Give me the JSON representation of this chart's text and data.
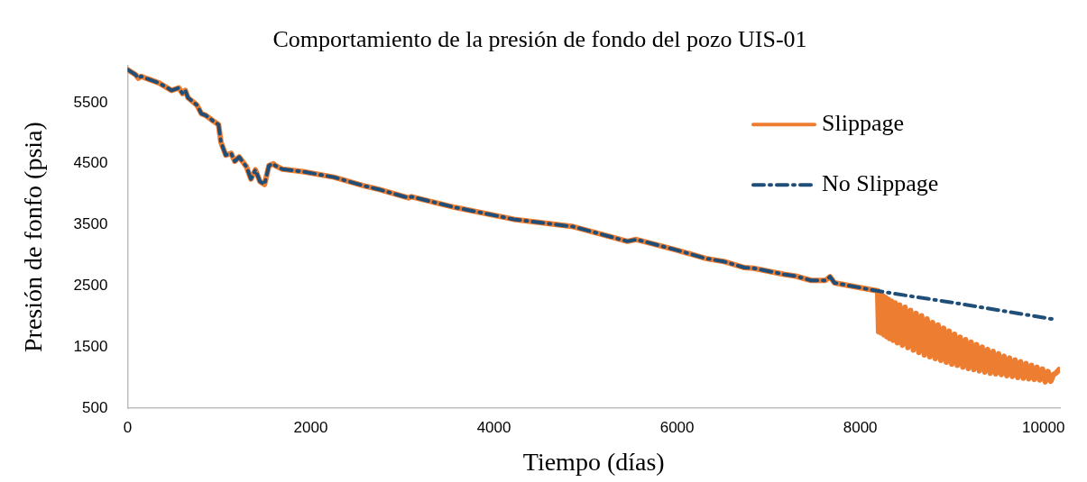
{
  "chart_data": {
    "type": "line",
    "title": "Comportamiento de la presión de fondo del pozo UIS-01",
    "xlabel": "Tiempo (días)",
    "ylabel": "Presión de fonfo (psia)",
    "xlim": [
      0,
      10180
    ],
    "xticks": [
      0,
      2000,
      4000,
      6000,
      8000,
      10000
    ],
    "ylim": [
      500,
      6100
    ],
    "yticks": [
      500,
      1500,
      2500,
      3500,
      4500,
      5500
    ],
    "grid": false,
    "legend": "top right",
    "marker": "none",
    "series": [
      {
        "name": "Slippage",
        "color": "#ed7d31",
        "line_style": "solid",
        "x": [
          0,
          85,
          118,
          148,
          216,
          344,
          480,
          560,
          600,
          630,
          660,
          757,
          806,
          855,
          934,
          993,
          1020,
          1072,
          1131,
          1170,
          1219,
          1298,
          1347,
          1396,
          1445,
          1495,
          1544,
          1593,
          1612,
          1691,
          1917,
          2252,
          2576,
          2743,
          3068,
          3100,
          3560,
          4218,
          4867,
          5457,
          5555,
          5988,
          6313,
          6509,
          6736,
          6834,
          7168,
          7296,
          7463,
          7620,
          7670,
          7719,
          8181,
          8190,
          8200,
          8215,
          8230,
          8245,
          8260,
          8275,
          8290,
          8305,
          8320,
          8340,
          8360,
          8380,
          8405,
          8430,
          8460,
          8490,
          8520,
          8550,
          8580,
          8610,
          8640,
          8670,
          8700,
          8730,
          8760,
          8790,
          8820,
          8850,
          8880,
          8910,
          8940,
          8970,
          9000,
          9030,
          9060,
          9090,
          9120,
          9150,
          9180,
          9210,
          9240,
          9270,
          9300,
          9330,
          9360,
          9390,
          9420,
          9450,
          9480,
          9510,
          9540,
          9570,
          9600,
          9630,
          9660,
          9690,
          9720,
          9750,
          9780,
          9810,
          9840,
          9870,
          9900,
          9930,
          9960,
          9990,
          10020,
          10050,
          10080,
          10110,
          10140,
          10170
        ],
        "values": [
          6040,
          5960,
          5900,
          5930,
          5890,
          5820,
          5700,
          5740,
          5650,
          5700,
          5580,
          5460,
          5320,
          5290,
          5200,
          5140,
          4850,
          4640,
          4670,
          4540,
          4610,
          4450,
          4250,
          4400,
          4210,
          4160,
          4470,
          4500,
          4470,
          4410,
          4370,
          4280,
          4140,
          4080,
          3940,
          3960,
          3790,
          3590,
          3470,
          3230,
          3260,
          3090,
          2950,
          2900,
          2800,
          2790,
          2690,
          2660,
          2590,
          2590,
          2650,
          2550,
          2420,
          2410,
          1750,
          2370,
          1730,
          2340,
          1700,
          2310,
          1670,
          2280,
          1640,
          2250,
          1610,
          2220,
          1570,
          2190,
          1530,
          2150,
          1490,
          2100,
          1450,
          2050,
          1410,
          2010,
          1370,
          1960,
          1340,
          1900,
          1310,
          1860,
          1280,
          1810,
          1250,
          1760,
          1220,
          1710,
          1200,
          1660,
          1170,
          1620,
          1150,
          1580,
          1130,
          1540,
          1110,
          1500,
          1090,
          1460,
          1070,
          1430,
          1060,
          1390,
          1050,
          1350,
          1030,
          1320,
          1020,
          1290,
          1000,
          1260,
          990,
          1230,
          980,
          1200,
          970,
          1170,
          960,
          1140,
          930,
          1100,
          940,
          1050,
          1080,
          1130
        ]
      },
      {
        "name": "No Slippage",
        "color": "#1f4e79",
        "line_style": "dashed",
        "x": [
          0,
          85,
          118,
          148,
          216,
          344,
          480,
          560,
          600,
          630,
          660,
          757,
          806,
          855,
          934,
          993,
          1020,
          1072,
          1131,
          1170,
          1219,
          1298,
          1347,
          1396,
          1445,
          1495,
          1544,
          1593,
          1612,
          1691,
          1917,
          2252,
          2576,
          2743,
          3068,
          3100,
          3560,
          4218,
          4867,
          5457,
          5555,
          5988,
          6313,
          6509,
          6736,
          6834,
          7168,
          7296,
          7463,
          7620,
          7670,
          7719,
          8181,
          8600,
          9000,
          9600,
          10130
        ],
        "values": [
          6040,
          5960,
          5900,
          5930,
          5890,
          5820,
          5700,
          5740,
          5650,
          5700,
          5580,
          5460,
          5320,
          5290,
          5200,
          5140,
          4850,
          4640,
          4670,
          4540,
          4610,
          4450,
          4250,
          4400,
          4210,
          4160,
          4470,
          4500,
          4470,
          4410,
          4370,
          4280,
          4140,
          4080,
          3940,
          3960,
          3790,
          3590,
          3470,
          3230,
          3260,
          3090,
          2950,
          2900,
          2800,
          2790,
          2690,
          2660,
          2590,
          2590,
          2650,
          2550,
          2420,
          2320,
          2230,
          2080,
          1950
        ]
      }
    ]
  }
}
